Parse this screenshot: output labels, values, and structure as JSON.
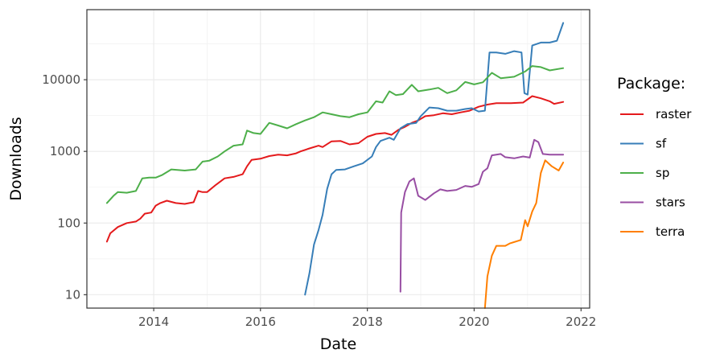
{
  "chart_data": {
    "type": "line",
    "xlabel": "Date",
    "ylabel": "Downloads",
    "y_scale": "log",
    "xlim": [
      "2012-10-01",
      "2022-03-01"
    ],
    "ylim": [
      6.5,
      95000
    ],
    "x_ticks": [
      {
        "label": "2014",
        "value": "2014-01-01"
      },
      {
        "label": "2016",
        "value": "2016-01-01"
      },
      {
        "label": "2018",
        "value": "2018-01-01"
      },
      {
        "label": "2020",
        "value": "2020-01-01"
      },
      {
        "label": "2022",
        "value": "2022-01-01"
      }
    ],
    "y_ticks": [
      {
        "label": "10",
        "value": 10
      },
      {
        "label": "100",
        "value": 100
      },
      {
        "label": "1000",
        "value": 1000
      },
      {
        "label": "10000",
        "value": 10000
      }
    ],
    "grid": true,
    "legend": {
      "title": "Package:",
      "position": "right"
    },
    "series": [
      {
        "name": "raster",
        "color": "#E41A1C",
        "points": [
          [
            "2013-02-15",
            55
          ],
          [
            "2013-03-10",
            72
          ],
          [
            "2013-05-01",
            88
          ],
          [
            "2013-07-01",
            100
          ],
          [
            "2013-09-01",
            105
          ],
          [
            "2013-10-01",
            115
          ],
          [
            "2013-11-01",
            135
          ],
          [
            "2013-12-15",
            140
          ],
          [
            "2014-01-15",
            175
          ],
          [
            "2014-02-15",
            190
          ],
          [
            "2014-04-01",
            205
          ],
          [
            "2014-06-01",
            190
          ],
          [
            "2014-08-01",
            185
          ],
          [
            "2014-10-01",
            195
          ],
          [
            "2014-11-01",
            280
          ],
          [
            "2014-12-01",
            270
          ],
          [
            "2015-01-01",
            270
          ],
          [
            "2015-03-01",
            340
          ],
          [
            "2015-05-01",
            420
          ],
          [
            "2015-07-01",
            440
          ],
          [
            "2015-09-01",
            480
          ],
          [
            "2015-10-01",
            620
          ],
          [
            "2015-11-01",
            760
          ],
          [
            "2016-01-01",
            790
          ],
          [
            "2016-03-01",
            860
          ],
          [
            "2016-05-01",
            900
          ],
          [
            "2016-07-01",
            880
          ],
          [
            "2016-09-01",
            940
          ],
          [
            "2016-10-01",
            1000
          ],
          [
            "2016-12-01",
            1100
          ],
          [
            "2017-02-01",
            1200
          ],
          [
            "2017-03-01",
            1150
          ],
          [
            "2017-05-01",
            1380
          ],
          [
            "2017-07-01",
            1400
          ],
          [
            "2017-09-01",
            1250
          ],
          [
            "2017-11-01",
            1300
          ],
          [
            "2018-01-01",
            1600
          ],
          [
            "2018-03-01",
            1750
          ],
          [
            "2018-05-01",
            1800
          ],
          [
            "2018-06-15",
            1700
          ],
          [
            "2018-08-01",
            2000
          ],
          [
            "2018-09-15",
            2200
          ],
          [
            "2018-11-01",
            2500
          ],
          [
            "2018-12-15",
            2700
          ],
          [
            "2019-02-01",
            3100
          ],
          [
            "2019-04-01",
            3200
          ],
          [
            "2019-06-01",
            3400
          ],
          [
            "2019-08-01",
            3300
          ],
          [
            "2019-10-01",
            3500
          ],
          [
            "2019-12-01",
            3700
          ],
          [
            "2020-02-01",
            4200
          ],
          [
            "2020-04-01",
            4500
          ],
          [
            "2020-06-01",
            4700
          ],
          [
            "2020-09-01",
            4700
          ],
          [
            "2020-12-01",
            4800
          ],
          [
            "2021-02-01",
            5900
          ],
          [
            "2021-04-01",
            5500
          ],
          [
            "2021-06-01",
            5000
          ],
          [
            "2021-07-01",
            4600
          ],
          [
            "2021-09-01",
            4900
          ]
        ]
      },
      {
        "name": "sf",
        "color": "#377EB8",
        "points": [
          [
            "2016-11-01",
            10
          ],
          [
            "2016-12-01",
            20
          ],
          [
            "2017-01-01",
            50
          ],
          [
            "2017-02-01",
            80
          ],
          [
            "2017-03-01",
            130
          ],
          [
            "2017-04-01",
            300
          ],
          [
            "2017-05-01",
            480
          ],
          [
            "2017-06-01",
            550
          ],
          [
            "2017-08-01",
            560
          ],
          [
            "2017-10-01",
            620
          ],
          [
            "2017-12-01",
            680
          ],
          [
            "2018-02-01",
            850
          ],
          [
            "2018-03-01",
            1150
          ],
          [
            "2018-04-01",
            1400
          ],
          [
            "2018-06-01",
            1550
          ],
          [
            "2018-07-01",
            1450
          ],
          [
            "2018-08-15",
            2100
          ],
          [
            "2018-10-01",
            2400
          ],
          [
            "2018-12-01",
            2500
          ],
          [
            "2019-01-01",
            3100
          ],
          [
            "2019-03-01",
            4100
          ],
          [
            "2019-05-01",
            4000
          ],
          [
            "2019-07-01",
            3700
          ],
          [
            "2019-09-01",
            3700
          ],
          [
            "2019-11-01",
            3900
          ],
          [
            "2019-12-15",
            4000
          ],
          [
            "2020-02-01",
            3600
          ],
          [
            "2020-03-15",
            3700
          ],
          [
            "2020-04-15",
            24000
          ],
          [
            "2020-06-01",
            24000
          ],
          [
            "2020-08-01",
            23000
          ],
          [
            "2020-10-01",
            25000
          ],
          [
            "2020-11-20",
            24000
          ],
          [
            "2020-12-10",
            6500
          ],
          [
            "2021-01-01",
            6200
          ],
          [
            "2021-02-01",
            30000
          ],
          [
            "2021-04-01",
            33000
          ],
          [
            "2021-06-01",
            33000
          ],
          [
            "2021-07-20",
            35000
          ],
          [
            "2021-09-01",
            62000
          ]
        ]
      },
      {
        "name": "sp",
        "color": "#4DAF4A",
        "points": [
          [
            "2013-02-15",
            190
          ],
          [
            "2013-04-01",
            240
          ],
          [
            "2013-05-01",
            270
          ],
          [
            "2013-07-01",
            265
          ],
          [
            "2013-09-01",
            280
          ],
          [
            "2013-10-15",
            420
          ],
          [
            "2013-12-01",
            430
          ],
          [
            "2014-01-15",
            430
          ],
          [
            "2014-03-01",
            470
          ],
          [
            "2014-05-01",
            560
          ],
          [
            "2014-08-01",
            540
          ],
          [
            "2014-10-15",
            560
          ],
          [
            "2014-12-01",
            720
          ],
          [
            "2015-01-15",
            740
          ],
          [
            "2015-03-15",
            850
          ],
          [
            "2015-05-01",
            1000
          ],
          [
            "2015-07-01",
            1200
          ],
          [
            "2015-09-01",
            1250
          ],
          [
            "2015-10-01",
            1950
          ],
          [
            "2015-11-15",
            1800
          ],
          [
            "2016-01-01",
            1750
          ],
          [
            "2016-03-01",
            2500
          ],
          [
            "2016-05-01",
            2300
          ],
          [
            "2016-07-01",
            2100
          ],
          [
            "2016-09-01",
            2400
          ],
          [
            "2016-11-01",
            2700
          ],
          [
            "2017-01-01",
            3000
          ],
          [
            "2017-03-01",
            3500
          ],
          [
            "2017-05-01",
            3300
          ],
          [
            "2017-07-01",
            3100
          ],
          [
            "2017-09-01",
            3000
          ],
          [
            "2017-11-01",
            3300
          ],
          [
            "2018-01-01",
            3500
          ],
          [
            "2018-03-01",
            5000
          ],
          [
            "2018-04-15",
            4800
          ],
          [
            "2018-06-01",
            6900
          ],
          [
            "2018-07-15",
            6100
          ],
          [
            "2018-09-01",
            6300
          ],
          [
            "2018-11-01",
            8500
          ],
          [
            "2018-12-15",
            6900
          ],
          [
            "2019-03-01",
            7300
          ],
          [
            "2019-05-01",
            7700
          ],
          [
            "2019-07-01",
            6500
          ],
          [
            "2019-09-01",
            7100
          ],
          [
            "2019-11-01",
            9300
          ],
          [
            "2020-01-01",
            8600
          ],
          [
            "2020-03-01",
            9200
          ],
          [
            "2020-05-01",
            12500
          ],
          [
            "2020-07-01",
            10500
          ],
          [
            "2020-10-01",
            11000
          ],
          [
            "2020-12-15",
            13000
          ],
          [
            "2021-02-01",
            15500
          ],
          [
            "2021-04-01",
            15000
          ],
          [
            "2021-06-01",
            13500
          ],
          [
            "2021-09-01",
            14500
          ]
        ]
      },
      {
        "name": "stars",
        "color": "#984EA3",
        "points": [
          [
            "2018-08-15",
            11
          ],
          [
            "2018-08-20",
            140
          ],
          [
            "2018-09-15",
            270
          ],
          [
            "2018-10-15",
            380
          ],
          [
            "2018-11-15",
            420
          ],
          [
            "2018-12-15",
            240
          ],
          [
            "2019-02-01",
            210
          ],
          [
            "2019-04-01",
            260
          ],
          [
            "2019-05-15",
            295
          ],
          [
            "2019-07-01",
            280
          ],
          [
            "2019-09-01",
            290
          ],
          [
            "2019-11-01",
            330
          ],
          [
            "2019-12-15",
            320
          ],
          [
            "2020-02-01",
            350
          ],
          [
            "2020-03-01",
            520
          ],
          [
            "2020-04-01",
            580
          ],
          [
            "2020-05-01",
            880
          ],
          [
            "2020-07-01",
            920
          ],
          [
            "2020-08-01",
            830
          ],
          [
            "2020-10-01",
            800
          ],
          [
            "2020-12-01",
            850
          ],
          [
            "2021-01-15",
            820
          ],
          [
            "2021-02-15",
            1450
          ],
          [
            "2021-03-15",
            1350
          ],
          [
            "2021-04-15",
            920
          ],
          [
            "2021-06-01",
            900
          ],
          [
            "2021-09-01",
            900
          ]
        ]
      },
      {
        "name": "terra",
        "color": "#FF7F00",
        "points": [
          [
            "2020-03-15",
            6.5
          ],
          [
            "2020-04-01",
            18
          ],
          [
            "2020-05-01",
            35
          ],
          [
            "2020-06-01",
            48
          ],
          [
            "2020-08-01",
            48
          ],
          [
            "2020-09-01",
            52
          ],
          [
            "2020-11-15",
            58
          ],
          [
            "2020-12-15",
            110
          ],
          [
            "2021-01-01",
            90
          ],
          [
            "2021-02-01",
            145
          ],
          [
            "2021-03-01",
            190
          ],
          [
            "2021-04-01",
            500
          ],
          [
            "2021-05-01",
            750
          ],
          [
            "2021-06-15",
            620
          ],
          [
            "2021-08-01",
            540
          ],
          [
            "2021-09-01",
            700
          ]
        ]
      }
    ]
  }
}
